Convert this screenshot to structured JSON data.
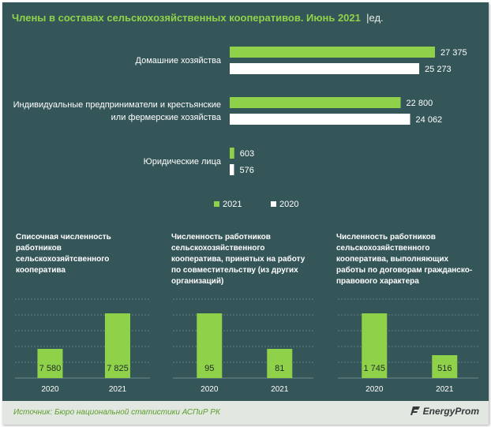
{
  "header": {
    "title": "Члены в составах сельскохозяйственных кооперативов. Июнь 2021",
    "unit": "ед."
  },
  "colors": {
    "green": "#8fd24a",
    "white": "#ffffff",
    "panel": "#355659"
  },
  "chart_data": [
    {
      "type": "bar",
      "orientation": "horizontal",
      "categories": [
        "Домашние хозяйства",
        "Индивидуальные предприниматели и крестьянские или фермерские хозяйства",
        "Юридические лица"
      ],
      "category_lines": [
        [
          "Домашние хозяйства"
        ],
        [
          "Индивидуальные предприниматели и крестьянские",
          "или фермерские хозяйства"
        ],
        [
          "Юридические лица"
        ]
      ],
      "series": [
        {
          "name": "2021",
          "values": [
            27375,
            22800,
            603
          ],
          "labels": [
            "27 375",
            "22 800",
            "603"
          ]
        },
        {
          "name": "2020",
          "values": [
            25273,
            24062,
            576
          ],
          "labels": [
            "25 273",
            "24 062",
            "576"
          ]
        }
      ],
      "xlim": [
        0,
        27375
      ],
      "legend": "bottom"
    },
    {
      "type": "bar",
      "title": "Списочная численность работников сельскохозяйственного кооператива",
      "title_lines": [
        "Списочная численность",
        "работников",
        "сельскохозяйтсвенного",
        "кооператива"
      ],
      "categories": [
        "2020",
        "2021"
      ],
      "values": [
        7580,
        7825
      ],
      "labels": [
        "7 580",
        "7 825"
      ],
      "heights": [
        0.37,
        0.82
      ]
    },
    {
      "type": "bar",
      "title": "Численность работников сельскохозяйственного кооператива, принятых на работу по совместительству (из других организаций)",
      "title_lines": [
        "Численность работников",
        "сельскохозяйственного",
        "кооператива, принятых на работу",
        "по совместительству (из других",
        "организаций)"
      ],
      "categories": [
        "2020",
        "2021"
      ],
      "values": [
        95,
        81
      ],
      "labels": [
        "95",
        "81"
      ],
      "heights": [
        0.82,
        0.37
      ]
    },
    {
      "type": "bar",
      "title": "Численность работников сельскохозяйственного кооператива, выполняющих работы по договорам гражданско-правового характера",
      "title_lines": [
        "Численность работников",
        "сельскохозяйственного",
        "кооператива, выполняющих",
        "работы по договорам гражданско-",
        "правового  характера"
      ],
      "categories": [
        "2020",
        "2021"
      ],
      "values": [
        1745,
        516
      ],
      "labels": [
        "1 745",
        "516"
      ],
      "heights": [
        0.82,
        0.29
      ]
    }
  ],
  "footer": {
    "source": "Источник: Бюро национальной  статистики АСПиР РК",
    "brand": "EnergyProm"
  }
}
